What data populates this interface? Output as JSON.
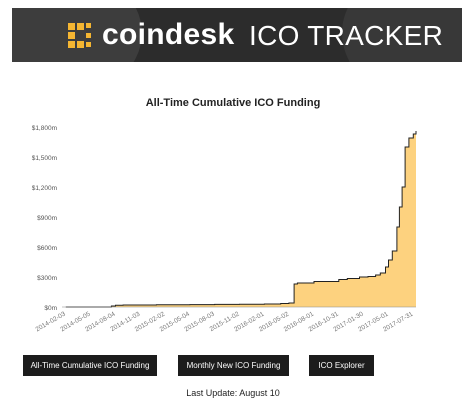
{
  "brand": {
    "name": "coindesk",
    "product": "ICO TRACKER"
  },
  "chart_data": {
    "type": "area",
    "title": "All-Time Cumulative ICO Funding",
    "xlabel": "",
    "ylabel": "",
    "grid": false,
    "ylim": [
      0,
      1800
    ],
    "y_unit": "m",
    "y_ticks": [
      "$0m",
      "$300m",
      "$600m",
      "$900m",
      "$1,200m",
      "$1,500m",
      "$1,800m"
    ],
    "y_tick_values": [
      0,
      300,
      600,
      900,
      1200,
      1500,
      1800
    ],
    "x_ticks": [
      "2014-02-03",
      "2014-05-05",
      "2014-08-04",
      "2014-11-03",
      "2015-02-02",
      "2015-05-04",
      "2015-08-03",
      "2015-11-02",
      "2016-02-01",
      "2016-05-02",
      "2016-08-01",
      "2016-10-31",
      "2017-01-30",
      "2017-05-01",
      "2017-07-31"
    ],
    "fill_color": "#fdd27f",
    "line_color": "#222222",
    "series": [
      {
        "x": [
          "2014-02-03",
          "2014-05-01",
          "2014-07-20",
          "2014-08-04",
          "2014-09-01",
          "2015-01-01",
          "2015-05-04",
          "2015-08-03",
          "2015-11-02",
          "2016-02-01",
          "2016-04-01",
          "2016-05-01",
          "2016-05-20",
          "2016-06-01",
          "2016-08-01",
          "2016-10-31",
          "2016-12-01",
          "2017-01-15",
          "2017-02-15",
          "2017-03-15",
          "2017-04-01",
          "2017-04-20",
          "2017-05-01",
          "2017-05-15",
          "2017-06-01",
          "2017-06-10",
          "2017-06-20",
          "2017-07-01",
          "2017-07-15",
          "2017-07-31",
          "2017-08-10"
        ],
        "values": [
          0,
          0,
          10,
          18,
          20,
          22,
          24,
          26,
          28,
          30,
          35,
          40,
          230,
          240,
          255,
          275,
          285,
          300,
          305,
          320,
          340,
          400,
          470,
          560,
          800,
          1000,
          1200,
          1600,
          1690,
          1730,
          1760
        ]
      }
    ]
  },
  "buttons": {
    "cumulative": "All-Time Cumulative ICO Funding",
    "monthly": "Monthly New ICO Funding",
    "explorer": "ICO Explorer"
  },
  "footer": {
    "last_update": "Last Update: August 10"
  }
}
